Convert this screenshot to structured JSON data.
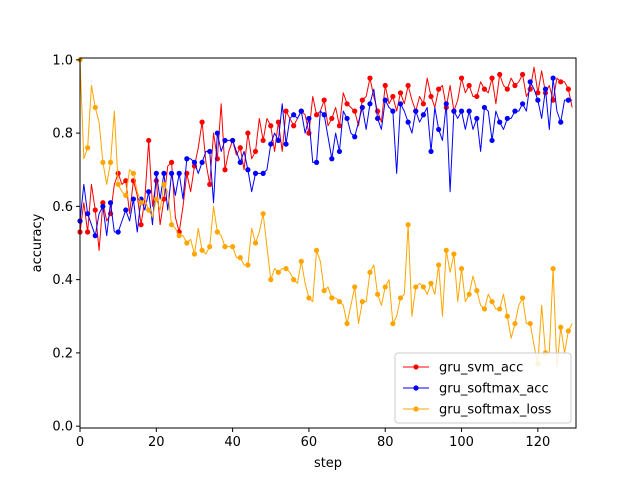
{
  "chart_data": {
    "type": "line",
    "title": "",
    "xlabel": "step",
    "ylabel": "accuracy",
    "xlim": [
      0,
      130
    ],
    "ylim": [
      -0.005,
      1.005
    ],
    "xticks": [
      0,
      20,
      40,
      60,
      80,
      100,
      120
    ],
    "yticks": [
      0.0,
      0.2,
      0.4,
      0.6,
      0.8,
      1.0
    ],
    "xtick_labels": [
      "0",
      "20",
      "40",
      "60",
      "80",
      "100",
      "120"
    ],
    "ytick_labels": [
      "0.0",
      "0.2",
      "0.4",
      "0.6",
      "0.8",
      "1.0"
    ],
    "grid": false,
    "legend": "lower-right",
    "marker_every": 2,
    "series": [
      {
        "name": "gru_svm_acc",
        "color": "#ff0000",
        "values": [
          0.53,
          0.61,
          0.53,
          0.66,
          0.59,
          0.48,
          0.61,
          0.56,
          0.58,
          0.66,
          0.69,
          0.66,
          0.67,
          0.58,
          0.67,
          0.63,
          0.55,
          0.62,
          0.78,
          0.6,
          0.67,
          0.55,
          0.62,
          0.71,
          0.72,
          0.57,
          0.53,
          0.6,
          0.69,
          0.64,
          0.71,
          0.76,
          0.83,
          0.72,
          0.66,
          0.8,
          0.73,
          0.88,
          0.7,
          0.75,
          0.78,
          0.74,
          0.76,
          0.7,
          0.8,
          0.73,
          0.75,
          0.84,
          0.78,
          0.84,
          0.82,
          0.75,
          0.83,
          0.75,
          0.86,
          0.84,
          0.82,
          0.84,
          0.86,
          0.85,
          0.8,
          0.9,
          0.85,
          0.86,
          0.89,
          0.82,
          0.84,
          0.87,
          0.82,
          0.91,
          0.88,
          0.87,
          0.86,
          0.82,
          0.89,
          0.9,
          0.95,
          0.9,
          0.86,
          0.83,
          0.93,
          0.88,
          0.9,
          0.86,
          0.91,
          0.88,
          0.93,
          0.89,
          0.86,
          0.9,
          0.88,
          0.95,
          0.9,
          0.87,
          0.92,
          0.93,
          0.87,
          0.93,
          0.86,
          0.89,
          0.95,
          0.91,
          0.93,
          0.9,
          0.9,
          0.94,
          0.92,
          0.91,
          0.95,
          0.88,
          0.96,
          0.93,
          0.92,
          0.95,
          0.93,
          0.94,
          0.96,
          0.9,
          0.92,
          0.98,
          0.91,
          0.97,
          0.91,
          0.93,
          0.89,
          0.95,
          0.94,
          0.94,
          0.92,
          0.87
        ]
      },
      {
        "name": "gru_softmax_acc",
        "color": "#0000ff",
        "values": [
          0.56,
          0.66,
          0.58,
          0.55,
          0.52,
          0.58,
          0.6,
          0.52,
          0.61,
          0.53,
          0.53,
          0.56,
          0.59,
          0.56,
          0.62,
          0.53,
          0.62,
          0.59,
          0.64,
          0.55,
          0.69,
          0.62,
          0.69,
          0.59,
          0.69,
          0.63,
          0.69,
          0.62,
          0.73,
          0.73,
          0.72,
          0.69,
          0.72,
          0.75,
          0.75,
          0.61,
          0.8,
          0.75,
          0.78,
          0.78,
          0.78,
          0.75,
          0.72,
          0.75,
          0.7,
          0.64,
          0.69,
          0.69,
          0.69,
          0.7,
          0.77,
          0.8,
          0.78,
          0.88,
          0.77,
          0.84,
          0.85,
          0.84,
          0.86,
          0.8,
          0.84,
          0.72,
          0.72,
          0.86,
          0.85,
          0.79,
          0.73,
          0.8,
          0.75,
          0.86,
          0.84,
          0.8,
          0.79,
          0.83,
          0.87,
          0.81,
          0.88,
          0.92,
          0.84,
          0.81,
          0.89,
          0.87,
          0.86,
          0.69,
          0.88,
          0.86,
          0.83,
          0.8,
          0.86,
          0.83,
          0.85,
          0.87,
          0.75,
          0.87,
          0.81,
          0.78,
          0.88,
          0.64,
          0.86,
          0.84,
          0.86,
          0.81,
          0.86,
          0.81,
          0.84,
          0.75,
          0.87,
          0.86,
          0.78,
          0.86,
          0.83,
          0.81,
          0.84,
          0.84,
          0.86,
          0.86,
          0.88,
          0.86,
          0.94,
          0.92,
          0.89,
          0.84,
          0.92,
          0.81,
          0.95,
          0.86,
          0.83,
          0.89,
          0.89,
          0.89
        ]
      },
      {
        "name": "gru_softmax_loss",
        "color": "#ffa500",
        "values": [
          1.0,
          0.73,
          0.76,
          0.93,
          0.87,
          0.83,
          0.72,
          0.66,
          0.72,
          0.86,
          0.66,
          0.64,
          0.63,
          0.7,
          0.69,
          0.64,
          0.61,
          0.62,
          0.59,
          0.57,
          0.62,
          0.59,
          0.66,
          0.64,
          0.55,
          0.54,
          0.52,
          0.52,
          0.5,
          0.51,
          0.47,
          0.54,
          0.48,
          0.47,
          0.49,
          0.6,
          0.53,
          0.52,
          0.49,
          0.49,
          0.49,
          0.46,
          0.46,
          0.44,
          0.44,
          0.54,
          0.5,
          0.53,
          0.58,
          0.49,
          0.4,
          0.43,
          0.42,
          0.43,
          0.43,
          0.42,
          0.4,
          0.39,
          0.45,
          0.39,
          0.35,
          0.34,
          0.48,
          0.45,
          0.37,
          0.38,
          0.35,
          0.35,
          0.34,
          0.33,
          0.28,
          0.33,
          0.38,
          0.28,
          0.34,
          0.34,
          0.42,
          0.44,
          0.36,
          0.33,
          0.38,
          0.4,
          0.28,
          0.3,
          0.35,
          0.36,
          0.55,
          0.3,
          0.38,
          0.39,
          0.38,
          0.36,
          0.39,
          0.36,
          0.44,
          0.3,
          0.48,
          0.42,
          0.47,
          0.34,
          0.43,
          0.34,
          0.36,
          0.41,
          0.37,
          0.33,
          0.32,
          0.36,
          0.34,
          0.32,
          0.32,
          0.36,
          0.3,
          0.24,
          0.28,
          0.33,
          0.35,
          0.28,
          0.28,
          0.22,
          0.17,
          0.33,
          0.2,
          0.2,
          0.43,
          0.16,
          0.27,
          0.2,
          0.26,
          0.28
        ]
      }
    ]
  }
}
